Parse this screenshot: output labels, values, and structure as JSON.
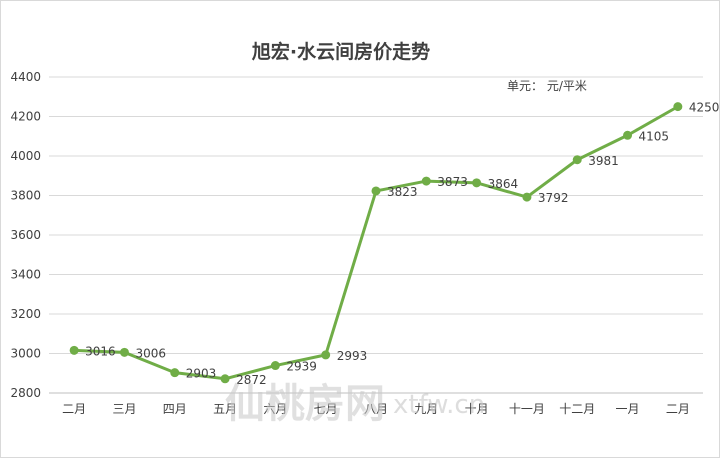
{
  "chart_data": {
    "type": "line",
    "title": "旭宏·水云间房价走势",
    "unit_note": "单元： 元/平米",
    "categories": [
      "二月",
      "三月",
      "四月",
      "五月",
      "六月",
      "七月",
      "八月",
      "九月",
      "十月",
      "十一月",
      "十二月",
      "一月",
      "二月"
    ],
    "series": [
      {
        "values": [
          3016,
          3006,
          2903,
          2872,
          2939,
          2993,
          3823,
          3873,
          3864,
          3792,
          3981,
          4105,
          4250
        ]
      }
    ],
    "ylim": [
      2800,
      4400
    ],
    "yticks": [
      2800,
      3000,
      3200,
      3400,
      3600,
      3800,
      4000,
      4200,
      4400
    ],
    "grid": true,
    "legend": "none",
    "line_color": "#70ad47",
    "marker_color": "#70ad47"
  },
  "watermark": {
    "cn": "仙桃房网",
    "url": "xtfw.cn"
  }
}
